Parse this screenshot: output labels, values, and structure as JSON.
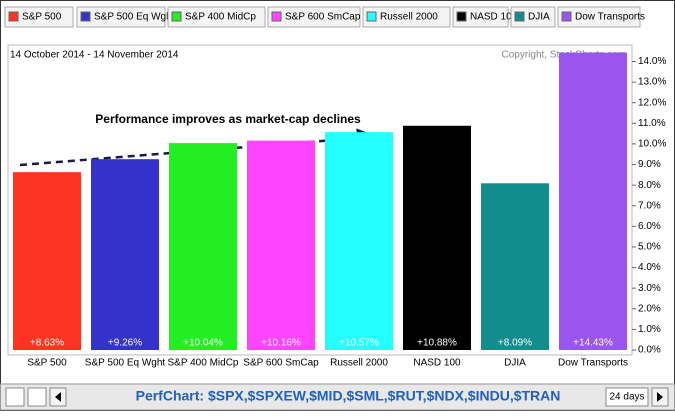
{
  "chart_data": {
    "type": "bar",
    "subtitle": "14 October 2014 - 14 November 2014",
    "credit": "Copyright, StockCharts.com",
    "annotation": "Performance improves as market-cap declines",
    "categories": [
      "S&P 500",
      "S&P 500 Eq Wght",
      "S&P 400 MidCp",
      "S&P 600 SmCap",
      "Russell 2000",
      "NASD 100",
      "DJIA",
      "Dow Transports"
    ],
    "values": [
      8.63,
      9.26,
      10.04,
      10.16,
      10.57,
      10.88,
      8.09,
      14.43
    ],
    "value_labels": [
      "+8.63%",
      "+9.26%",
      "+10.04%",
      "+10.16%",
      "+10.57%",
      "+10.88%",
      "+8.09%",
      "+14.43%"
    ],
    "colors": [
      "#ff3322",
      "#3333cc",
      "#22ee22",
      "#ff44ff",
      "#22ffff",
      "#000000",
      "#128c8c",
      "#9955ee"
    ],
    "ylim": [
      0,
      14.8
    ],
    "yticks": [
      {
        "value": 0,
        "label": "0.0%"
      },
      {
        "value": 1,
        "label": "1.0%"
      },
      {
        "value": 2,
        "label": "2.0%"
      },
      {
        "value": 3,
        "label": "3.0%"
      },
      {
        "value": 4,
        "label": "4.0%"
      },
      {
        "value": 5,
        "label": "5.0%"
      },
      {
        "value": 6,
        "label": "6.0%"
      },
      {
        "value": 7,
        "label": "7.0%"
      },
      {
        "value": 8,
        "label": "8.0%"
      },
      {
        "value": 9,
        "label": "9.0%"
      },
      {
        "value": 10,
        "label": "10.0%"
      },
      {
        "value": 11,
        "label": "11.0%"
      },
      {
        "value": 12,
        "label": "12.0%"
      },
      {
        "value": 13,
        "label": "13.0%"
      },
      {
        "value": 14,
        "label": "14.0%"
      }
    ],
    "footer": "PerfChart: $SPX,$SPXEW,$MID,$SML,$RUT,$NDX,$INDU,$TRAN",
    "period": "24 days"
  }
}
